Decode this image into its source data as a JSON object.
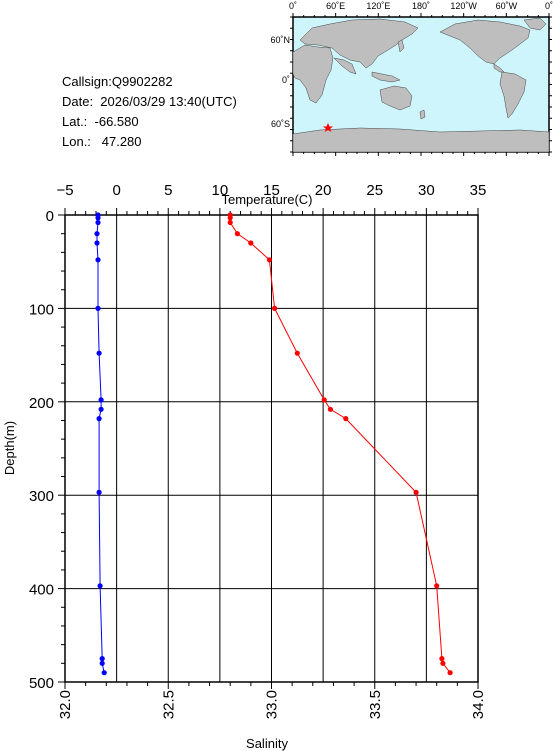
{
  "info": {
    "callsign": "Callsign:Q9902282",
    "date": "Date:  2026/03/29 13:40(UTC)",
    "lat": "Lat.:  -66.580",
    "lon": "Lon.:   47.280"
  },
  "map": {
    "top_labels": [
      "0˚",
      "60˚E",
      "120˚E",
      "180˚",
      "120˚W",
      "60˚W",
      "0˚"
    ],
    "side_labels": [
      "60˚N",
      "0˚",
      "60˚S"
    ],
    "ocean_color": "#cdf5fb",
    "land_color": "#bebebe",
    "marker_color": "#ff0000",
    "marker": {
      "lat": -66.58,
      "lon": 47.28
    }
  },
  "chart_data": {
    "type": "line",
    "ylabel": "Depth(m)",
    "ylim": [
      0,
      500
    ],
    "y_ticks": [
      "0",
      "100",
      "200",
      "300",
      "400",
      "500"
    ],
    "grid": true,
    "temperature_axis": {
      "label": "Temperature(C)",
      "position": "top",
      "lim": [
        -5,
        35
      ],
      "ticks": [
        "−5",
        "0",
        "5",
        "10",
        "15",
        "20",
        "25",
        "30",
        "35"
      ]
    },
    "salinity_axis": {
      "label": "Salinity",
      "position": "bottom",
      "lim": [
        32.0,
        34.0
      ],
      "ticks": [
        "32.0",
        "32.5",
        "33.0",
        "33.5",
        "34.0"
      ]
    },
    "series": [
      {
        "axis": "salinity",
        "color": "#0000ff",
        "points": [
          [
            32.16,
            0
          ],
          [
            32.16,
            3
          ],
          [
            32.16,
            8
          ],
          [
            32.155,
            20
          ],
          [
            32.155,
            30
          ],
          [
            32.16,
            48
          ],
          [
            32.16,
            100
          ],
          [
            32.165,
            148
          ],
          [
            32.175,
            198
          ],
          [
            32.175,
            208
          ],
          [
            32.165,
            218
          ],
          [
            32.165,
            297
          ],
          [
            32.17,
            397
          ],
          [
            32.18,
            475
          ],
          [
            32.18,
            480
          ],
          [
            32.19,
            490
          ]
        ]
      },
      {
        "axis": "temperature",
        "color": "#ff0000",
        "points": [
          [
            11.0,
            0
          ],
          [
            11.0,
            3
          ],
          [
            11.0,
            8
          ],
          [
            11.7,
            20
          ],
          [
            13.0,
            30
          ],
          [
            14.8,
            48
          ],
          [
            15.3,
            100
          ],
          [
            17.5,
            148
          ],
          [
            20.1,
            198
          ],
          [
            20.7,
            208
          ],
          [
            22.2,
            218
          ],
          [
            29.0,
            297
          ],
          [
            31.0,
            397
          ],
          [
            31.5,
            475
          ],
          [
            31.6,
            480
          ],
          [
            32.3,
            490
          ]
        ]
      }
    ]
  }
}
